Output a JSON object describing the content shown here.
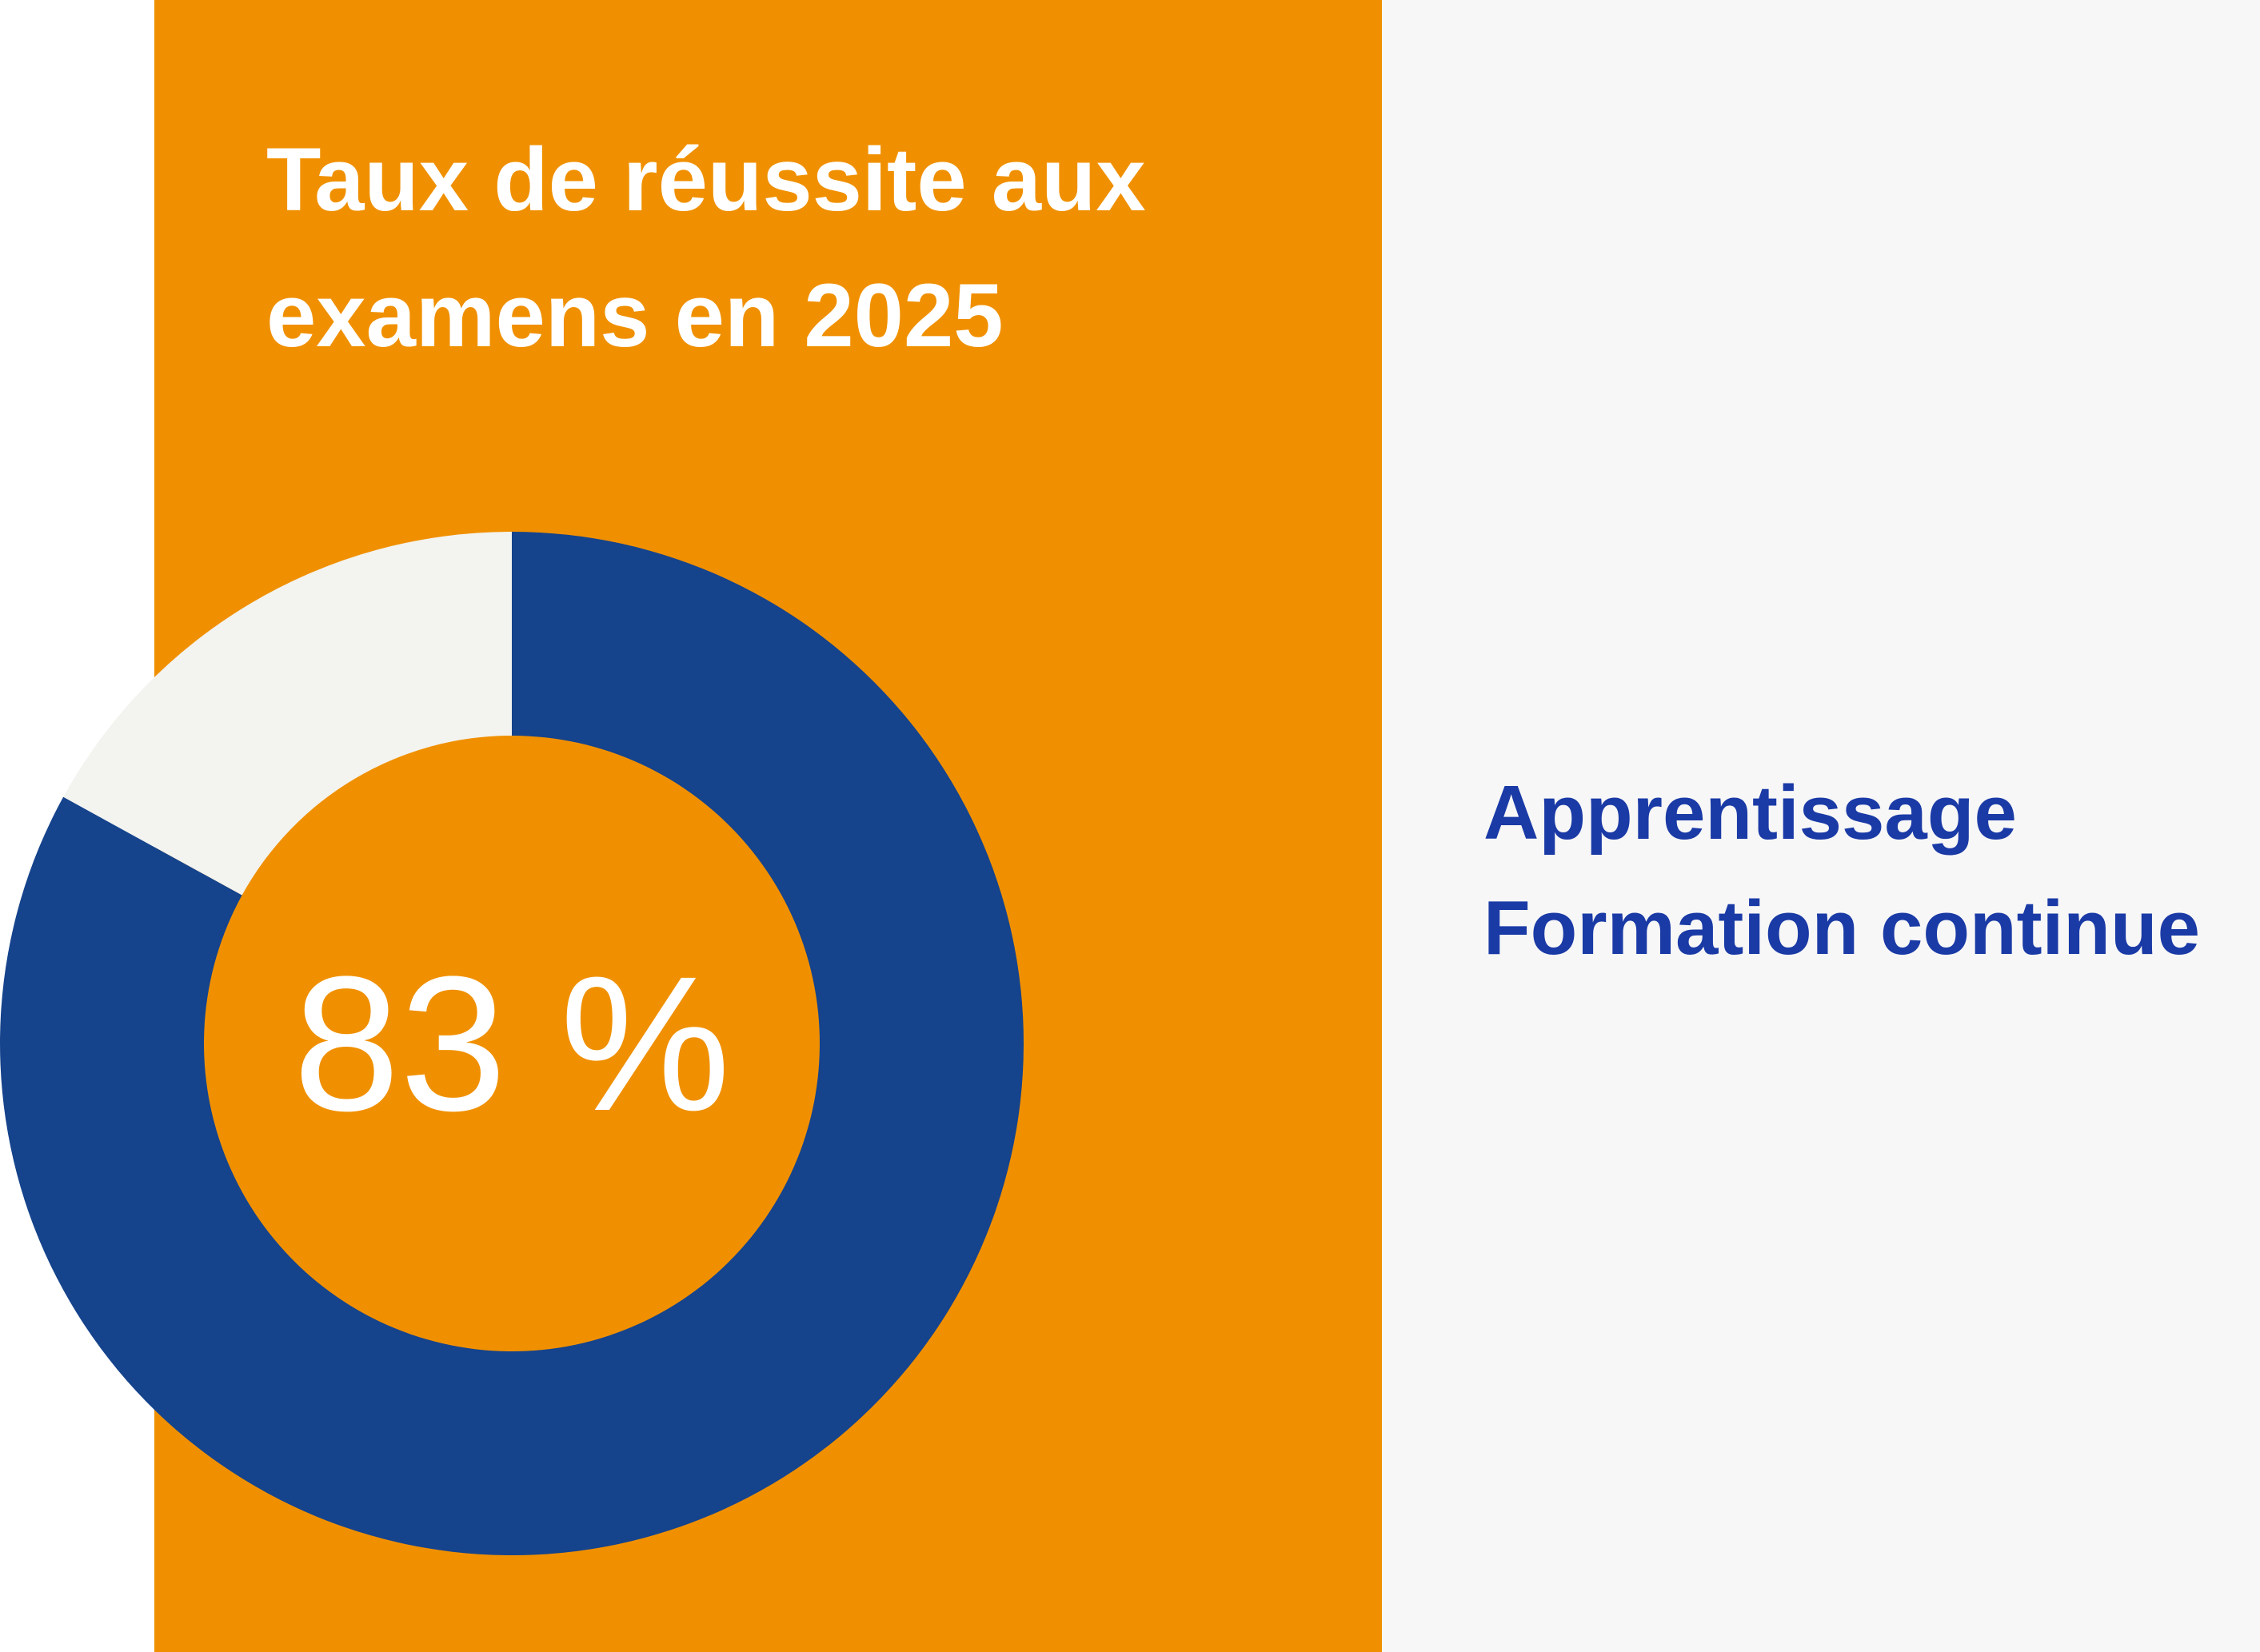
{
  "chart_data": {
    "type": "pie",
    "title_lines": [
      "Taux de réussite aux",
      "examens en 2025"
    ],
    "center_label": "83 %",
    "categories": [
      "Apprentissage",
      "Formation continue"
    ],
    "values": [
      83,
      17
    ],
    "colors": [
      "#15438c",
      "#f3f3ef"
    ],
    "legend_position": "right"
  },
  "colors": {
    "panel": "#f09000",
    "side": "#f7f7f7",
    "legend_text": "#1a3aa6"
  }
}
